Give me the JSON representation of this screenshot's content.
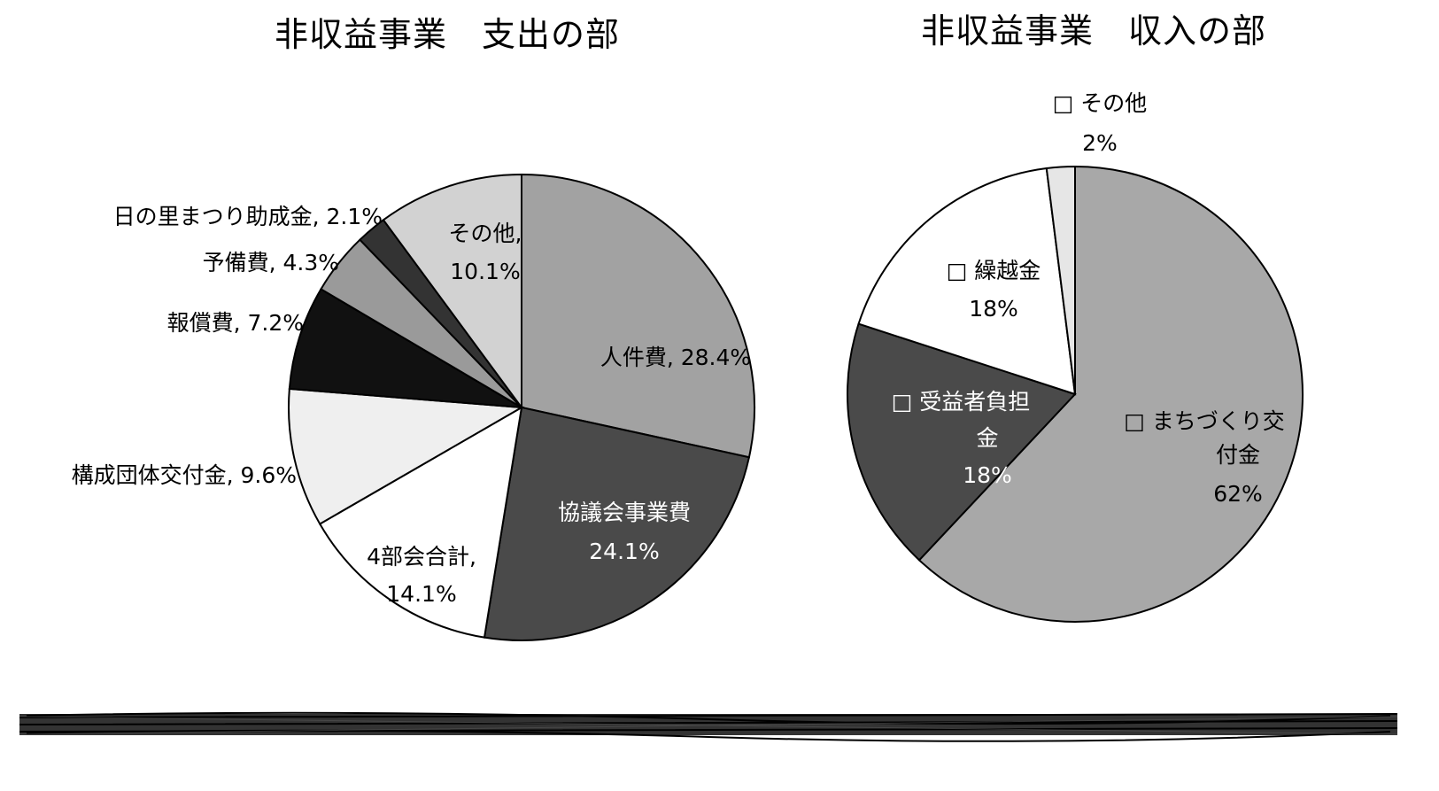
{
  "chart_data": [
    {
      "type": "pie",
      "title": "非収益事業　支出の部",
      "start": "12 o'clock",
      "direction": "clockwise",
      "label_format": "category, percent",
      "slices": [
        {
          "label": "人件費, 28.4%",
          "value": 28.4,
          "color": "#a2a2a2"
        },
        {
          "label": "協議会事業費 24.1%",
          "value": 24.1,
          "color": "#4a4a4a"
        },
        {
          "label": "4部会合計, 14.1%",
          "value": 14.1,
          "color": "#ffffff"
        },
        {
          "label": "構成団体交付金, 9.6%",
          "value": 9.6,
          "color": "#efefef"
        },
        {
          "label": "報償費, 7.2%",
          "value": 7.2,
          "color": "#111111"
        },
        {
          "label": "予備費, 4.3%",
          "value": 4.3,
          "color": "#9a9a9a"
        },
        {
          "label": "日の里まつり助成金, 2.1%",
          "value": 2.1,
          "color": "#333333"
        },
        {
          "label": "その他, 10.1%",
          "value": 10.1,
          "color": "#d2d2d2"
        }
      ]
    },
    {
      "type": "pie",
      "title": "非収益事業　収入の部",
      "start": "12 o'clock",
      "direction": "clockwise",
      "label_format": "□ category, percent",
      "slices": [
        {
          "label": "□ まちづくり交付金 62%",
          "value": 62,
          "color": "#a8a8a8"
        },
        {
          "label": "□ 受益者負担金 18%",
          "value": 18,
          "color": "#4a4a4a"
        },
        {
          "label": "□ 繰越金 18%",
          "value": 18,
          "color": "#ffffff"
        },
        {
          "label": "□ その他 2%",
          "value": 2,
          "color": "#e6e6e6"
        }
      ]
    }
  ]
}
